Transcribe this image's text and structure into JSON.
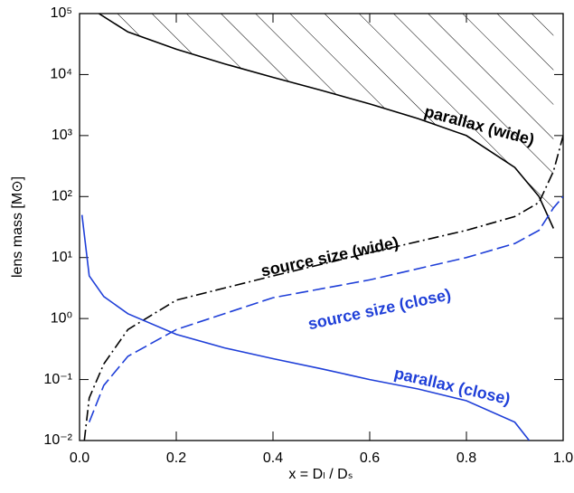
{
  "chart_data": {
    "type": "line",
    "xlabel": "x = Dₗ / Dₛ",
    "ylabel": "lens mass [M⊙]",
    "xlim": [
      0,
      1
    ],
    "xticks": [
      {
        "value": 0,
        "label": "0.0"
      },
      0.2,
      0.4,
      0.6,
      0.8,
      {
        "value": 1,
        "label": "1.0"
      }
    ],
    "ylim": [
      0.01,
      100000
    ],
    "yticks": [
      {
        "value": 0.01,
        "label": "10⁻²"
      },
      {
        "value": 0.1,
        "label": "10⁻¹"
      },
      {
        "value": 1,
        "label": "10⁰"
      },
      {
        "value": 10,
        "label": "10¹"
      },
      {
        "value": 100,
        "label": "10²"
      },
      {
        "value": 1000,
        "label": "10³"
      },
      {
        "value": 10000,
        "label": "10⁴"
      },
      {
        "value": 100000,
        "label": "10⁵"
      }
    ],
    "yscale": "log",
    "series": [
      {
        "name": "parallax (wide)",
        "color": "#000000",
        "style": "solid",
        "hatch": true,
        "x": [
          0.04,
          0.1,
          0.2,
          0.3,
          0.4,
          0.5,
          0.6,
          0.7,
          0.8,
          0.9,
          0.95,
          0.98
        ],
        "values": [
          100000,
          50000,
          26000,
          15000,
          9000,
          5500,
          3300,
          1900,
          1000,
          300,
          100,
          30
        ]
      },
      {
        "name": "source size (wide)",
        "color": "#000000",
        "style": "dash-dot",
        "x": [
          0.01,
          0.02,
          0.05,
          0.1,
          0.2,
          0.4,
          0.6,
          0.8,
          0.9,
          0.95,
          0.98,
          1.0
        ],
        "values": [
          0.01,
          0.05,
          0.18,
          0.66,
          2,
          5,
          12,
          28,
          47,
          80,
          260,
          1000
        ]
      },
      {
        "name": "source size (close)",
        "color": "#1f3fd8",
        "style": "dashed",
        "x": [
          0.02,
          0.05,
          0.1,
          0.2,
          0.4,
          0.6,
          0.8,
          0.9,
          0.95,
          0.98,
          1.0
        ],
        "values": [
          0.02,
          0.08,
          0.24,
          0.66,
          2.2,
          4.3,
          10,
          17,
          28,
          65,
          100
        ]
      },
      {
        "name": "parallax (close)",
        "color": "#1f3fd8",
        "style": "solid",
        "x": [
          0.005,
          0.02,
          0.05,
          0.1,
          0.2,
          0.3,
          0.4,
          0.5,
          0.6,
          0.7,
          0.8,
          0.9,
          0.93
        ],
        "values": [
          50,
          5,
          2.3,
          1.2,
          0.55,
          0.33,
          0.22,
          0.15,
          0.1,
          0.07,
          0.045,
          0.02,
          0.01
        ]
      }
    ]
  }
}
